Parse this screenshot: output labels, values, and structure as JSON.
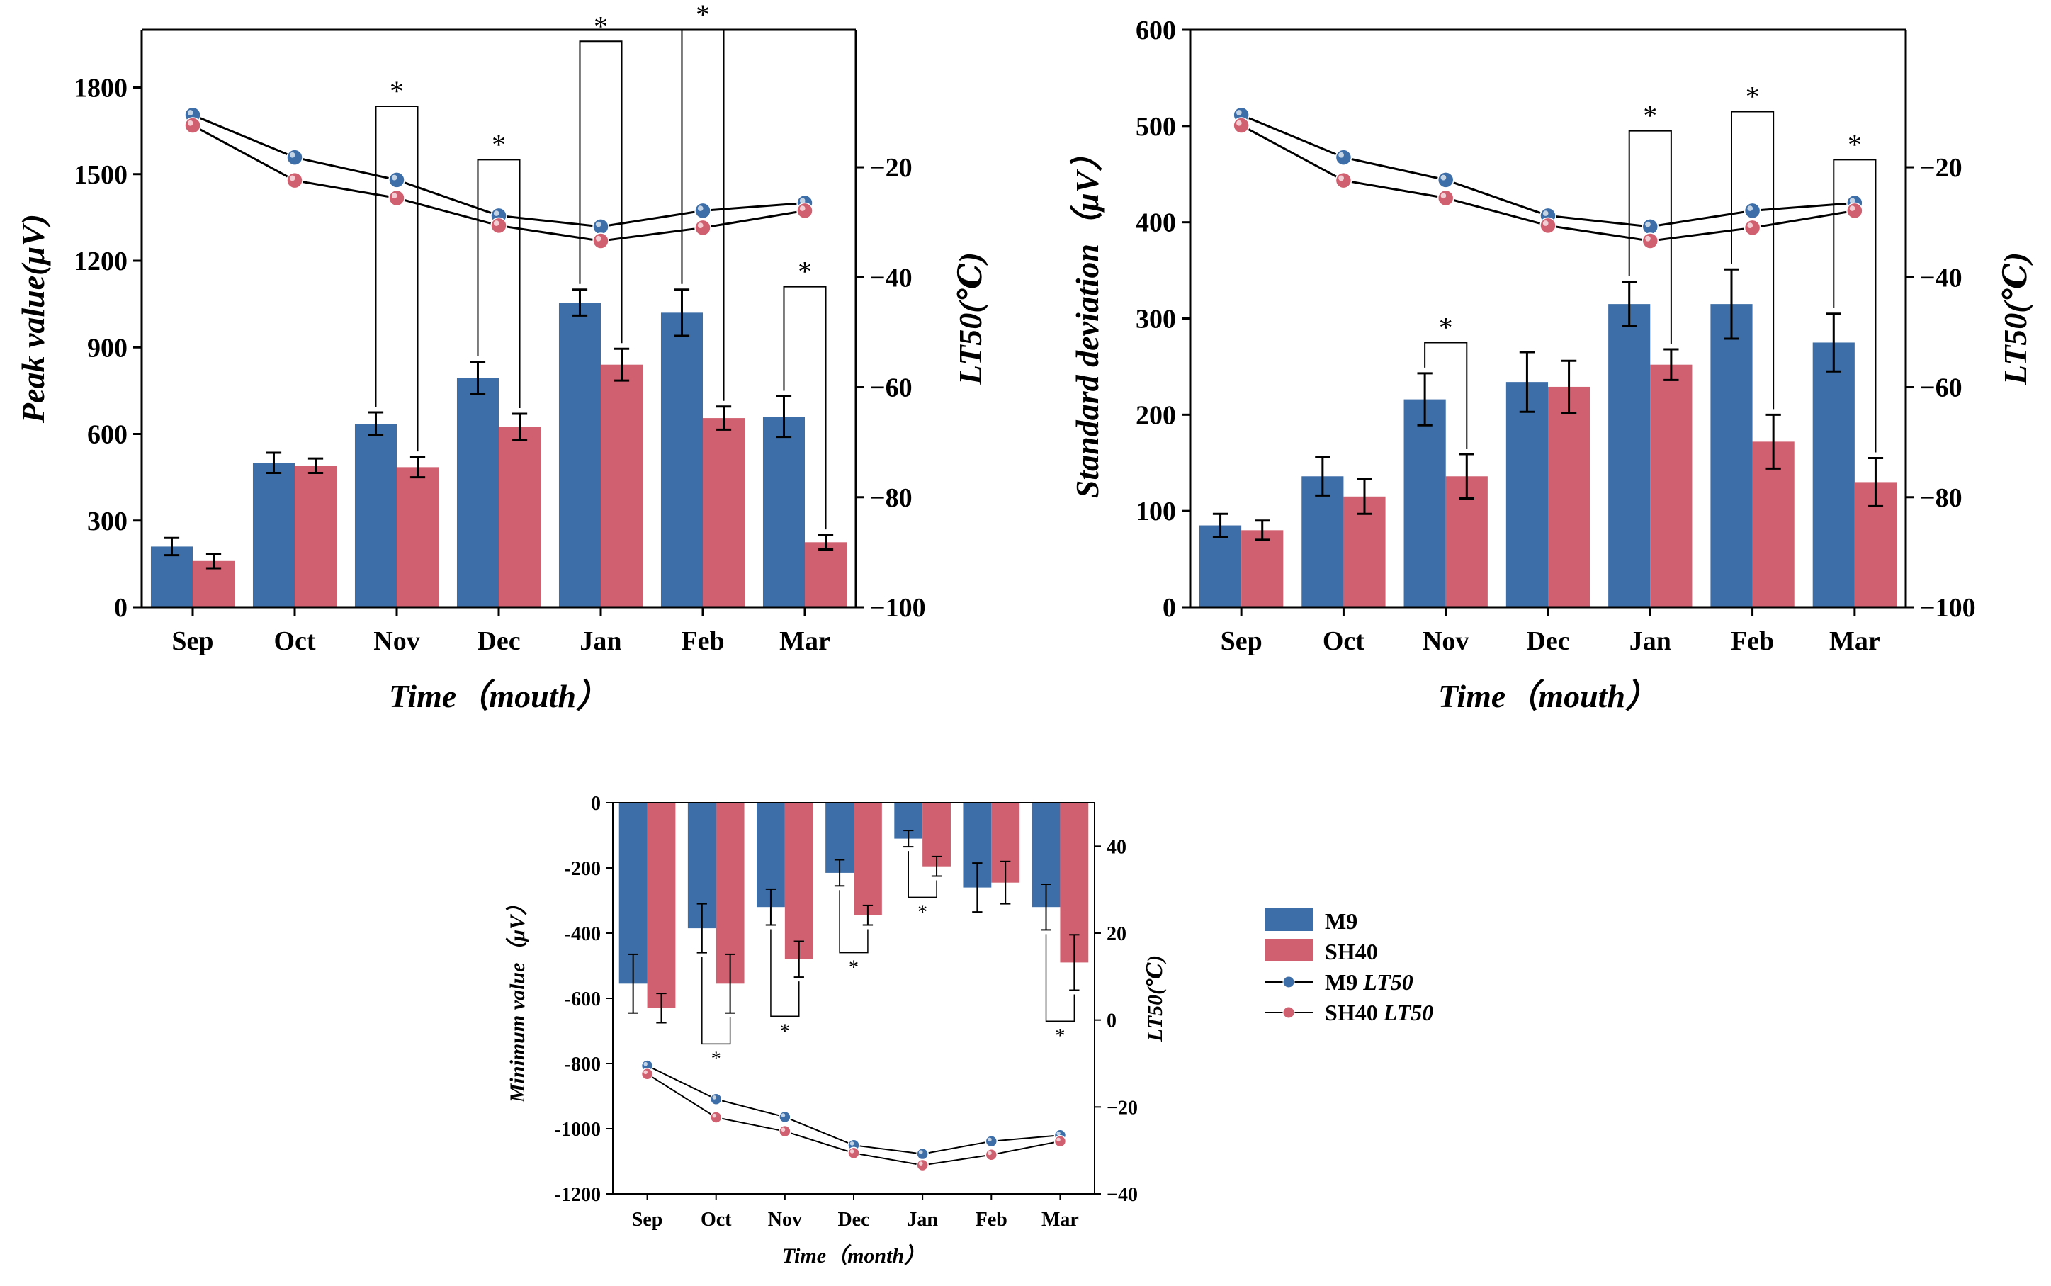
{
  "colors": {
    "m9": "#3d6ea8",
    "sh40": "#d0606f",
    "axis": "#000000"
  },
  "legend": {
    "items": [
      {
        "label": "M9",
        "kind": "bar",
        "series": "m9"
      },
      {
        "label": "SH40",
        "kind": "bar",
        "series": "sh40"
      },
      {
        "label": "M9",
        "suffix": "LT50",
        "kind": "line",
        "series": "m9"
      },
      {
        "label": "SH40",
        "suffix": "LT50",
        "kind": "line",
        "series": "sh40"
      }
    ]
  },
  "chart_data": [
    {
      "id": "peak",
      "type": "bar",
      "categories": [
        "Sep",
        "Oct",
        "Nov",
        "Dec",
        "Jan",
        "Feb",
        "Mar"
      ],
      "xlabel": "Time（mouth）",
      "ylabel": "Peak value(μV)",
      "y2label": "LT50(℃)",
      "ylim": [
        0,
        2000
      ],
      "yticks": [
        0,
        300,
        600,
        900,
        1200,
        1500,
        1800
      ],
      "y2lim": [
        -100,
        5
      ],
      "y2ticks": [
        -20,
        -40,
        -60,
        -80,
        -100
      ],
      "y2tick_labels": [
        "−20",
        "−40",
        "−60",
        "−80",
        "−100"
      ],
      "series": [
        {
          "name": "M9",
          "values": [
            210,
            500,
            635,
            795,
            1055,
            1020,
            660
          ],
          "errors": [
            30,
            35,
            40,
            55,
            45,
            80,
            70
          ]
        },
        {
          "name": "SH40",
          "values": [
            160,
            490,
            485,
            625,
            840,
            655,
            225
          ],
          "errors": [
            25,
            25,
            35,
            45,
            55,
            40,
            25
          ]
        }
      ],
      "lt50": [
        {
          "name": "M9 LT50",
          "values": [
            -10.5,
            -18.2,
            -22.3,
            -28.8,
            -30.8,
            -27.9,
            -26.5
          ]
        },
        {
          "name": "SH40 LT50",
          "values": [
            -12.4,
            -22.4,
            -25.6,
            -30.6,
            -33.4,
            -31.0,
            -27.9
          ]
        }
      ],
      "significance": [
        {
          "category": "Nov",
          "label": "*"
        },
        {
          "category": "Dec",
          "label": "*"
        },
        {
          "category": "Jan",
          "label": "*"
        },
        {
          "category": "Feb",
          "label": "*"
        },
        {
          "category": "Mar",
          "label": "*"
        }
      ]
    },
    {
      "id": "std",
      "type": "bar",
      "categories": [
        "Sep",
        "Oct",
        "Nov",
        "Dec",
        "Jan",
        "Feb",
        "Mar"
      ],
      "xlabel": "Time（mouth）",
      "ylabel": "Standard deviation（μV）",
      "y2label": "LT50(℃)",
      "ylim": [
        0,
        600
      ],
      "yticks": [
        0,
        100,
        200,
        300,
        400,
        500,
        600
      ],
      "y2lim": [
        -100,
        5
      ],
      "y2ticks": [
        -20,
        -40,
        -60,
        -80,
        -100
      ],
      "y2tick_labels": [
        "−20",
        "−40",
        "−60",
        "−80",
        "−100"
      ],
      "series": [
        {
          "name": "M9",
          "values": [
            85,
            136,
            216,
            234,
            315,
            315,
            275
          ],
          "errors": [
            12,
            20,
            27,
            31,
            23,
            36,
            30
          ]
        },
        {
          "name": "SH40",
          "values": [
            80,
            115,
            136,
            229,
            252,
            172,
            130
          ],
          "errors": [
            10,
            18,
            23,
            27,
            16,
            28,
            25
          ]
        }
      ],
      "lt50": [
        {
          "name": "M9 LT50",
          "values": [
            -10.5,
            -18.2,
            -22.3,
            -28.8,
            -30.8,
            -27.9,
            -26.5
          ]
        },
        {
          "name": "SH40 LT50",
          "values": [
            -12.4,
            -22.4,
            -25.6,
            -30.6,
            -33.4,
            -31.0,
            -27.9
          ]
        }
      ],
      "significance": [
        {
          "category": "Nov",
          "label": "*"
        },
        {
          "category": "Jan",
          "label": "*"
        },
        {
          "category": "Feb",
          "label": "*"
        },
        {
          "category": "Mar",
          "label": "*"
        }
      ]
    },
    {
      "id": "min",
      "type": "bar",
      "categories": [
        "Sep",
        "Oct",
        "Nov",
        "Dec",
        "Jan",
        "Feb",
        "Mar"
      ],
      "xlabel": "Time（month）",
      "ylabel": "Minimum value（μV）",
      "y2label": "LT50(℃)",
      "ylim": [
        -1200,
        0
      ],
      "yticks": [
        0,
        -200,
        -400,
        -600,
        -800,
        -1000,
        -1200
      ],
      "y2lim": [
        -40,
        50
      ],
      "y2ticks": [
        40,
        20,
        0,
        -20,
        -40
      ],
      "y2tick_labels": [
        "40",
        "20",
        "0",
        "−20",
        "−40"
      ],
      "series": [
        {
          "name": "M9",
          "values": [
            -555,
            -385,
            -320,
            -215,
            -110,
            -260,
            -320
          ],
          "errors": [
            90,
            75,
            55,
            40,
            25,
            75,
            70
          ]
        },
        {
          "name": "SH40",
          "values": [
            -630,
            -555,
            -480,
            -345,
            -195,
            -245,
            -490
          ],
          "errors": [
            45,
            90,
            55,
            30,
            30,
            65,
            85
          ]
        }
      ],
      "lt50": [
        {
          "name": "M9 LT50",
          "values": [
            -10.5,
            -18.2,
            -22.3,
            -28.8,
            -30.8,
            -27.9,
            -26.5
          ]
        },
        {
          "name": "SH40 LT50",
          "values": [
            -12.4,
            -22.4,
            -25.6,
            -30.6,
            -33.4,
            -31.0,
            -27.9
          ]
        }
      ],
      "significance": [
        {
          "category": "Oct",
          "label": "*"
        },
        {
          "category": "Nov",
          "label": "*"
        },
        {
          "category": "Dec",
          "label": "*"
        },
        {
          "category": "Jan",
          "label": "*"
        },
        {
          "category": "Mar",
          "label": "*"
        }
      ]
    }
  ]
}
